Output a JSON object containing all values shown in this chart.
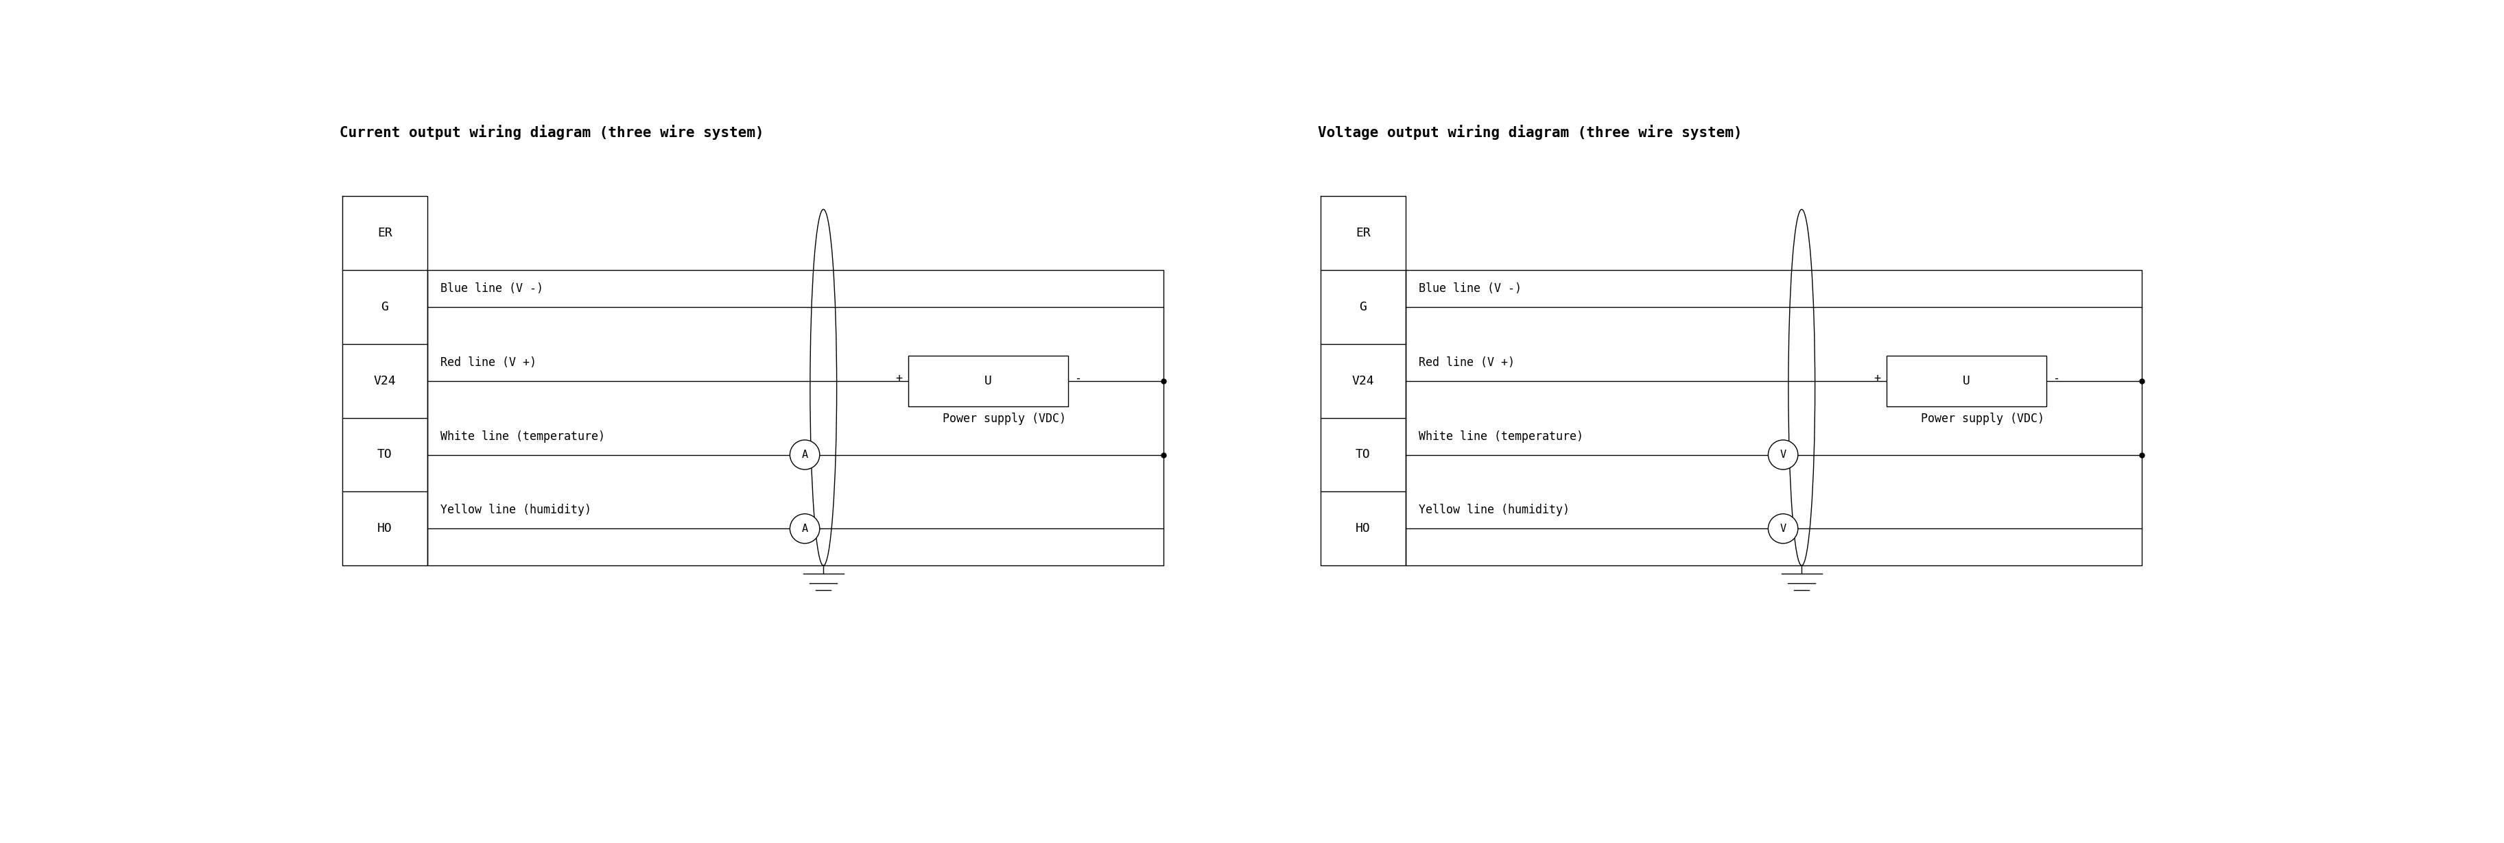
{
  "title_left": "Current output wiring diagram (three wire system)",
  "title_right": "Voltage output wiring diagram (three wire system)",
  "left_indicator": "A",
  "right_indicator": "V",
  "font_color": "#000000",
  "bg_color": "#ffffff",
  "title_fontsize": 15,
  "label_fontsize": 13,
  "annotation_fontsize": 12,
  "diagram_offsets": [
    0.4,
    18.8
  ],
  "row_labels": [
    "ER",
    "G",
    "V24",
    "TO",
    "HO"
  ],
  "line_texts": [
    "Blue line (V -)",
    "Red line (V +)",
    "White line (temperature)",
    "Yellow line (humidity)"
  ],
  "power_text": "Power supply (VDC)",
  "u_text": "U",
  "plus_text": "+",
  "minus_text": "-"
}
